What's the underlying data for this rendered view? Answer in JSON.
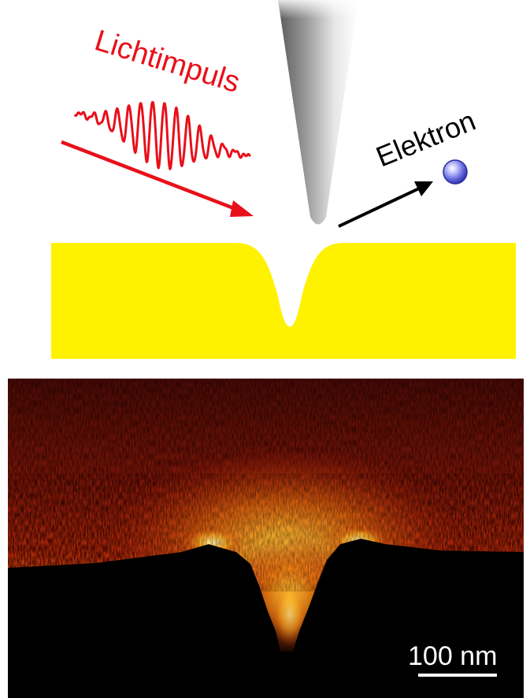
{
  "labels": {
    "light_pulse": "Lichtimpuls",
    "electron": "Elektron",
    "scale_bar": "100 nm"
  },
  "colors": {
    "light_pulse": "#e8101a",
    "gold_surface": "#fff200",
    "electron_sphere": "#5b5fd8",
    "arrow_electron": "#000000",
    "heatmap_dark": "#000000",
    "heatmap_mid": "#c81a0a",
    "heatmap_bright": "#ffe14a"
  },
  "icons": [
    "tip-cone-icon",
    "electron-sphere-icon",
    "light-wave-icon"
  ]
}
